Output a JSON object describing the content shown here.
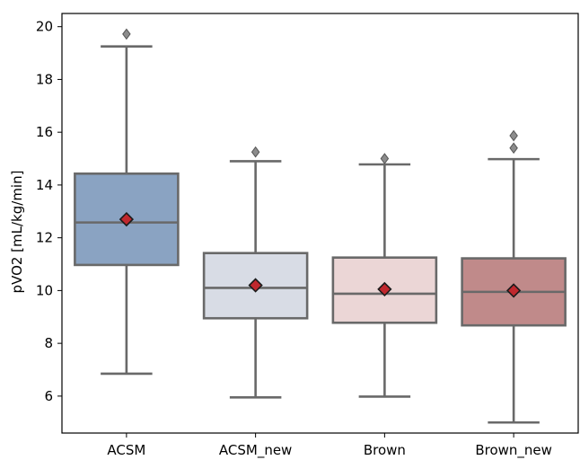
{
  "chart_data": {
    "type": "boxplot",
    "title": "",
    "xlabel": "",
    "ylabel": "pVO2 [mL/kg/min]",
    "ylim": [
      4.6,
      20.5
    ],
    "yticks": [
      6,
      8,
      10,
      12,
      14,
      16,
      18,
      20
    ],
    "grid": false,
    "categories": [
      "ACSM",
      "ACSM_new",
      "Brown",
      "Brown_new"
    ],
    "boxes": [
      {
        "category": "ACSM",
        "whisker_low": 6.85,
        "q1": 10.97,
        "median": 12.58,
        "q3": 14.43,
        "whisker_high": 19.25,
        "mean": 12.7,
        "outliers": [
          19.72
        ],
        "color": "#8aa3c2"
      },
      {
        "category": "ACSM_new",
        "whisker_low": 5.95,
        "q1": 8.95,
        "median": 10.1,
        "q3": 11.42,
        "whisker_high": 14.9,
        "mean": 10.2,
        "outliers": [
          15.25
        ],
        "color": "#d8dce5"
      },
      {
        "category": "Brown",
        "whisker_low": 5.98,
        "q1": 8.78,
        "median": 9.88,
        "q3": 11.25,
        "whisker_high": 14.78,
        "mean": 10.05,
        "outliers": [
          15.0
        ],
        "color": "#ebd6d6"
      },
      {
        "category": "Brown_new",
        "whisker_low": 5.0,
        "q1": 8.68,
        "median": 9.95,
        "q3": 11.22,
        "whisker_high": 14.98,
        "mean": 10.0,
        "outliers": [
          15.4,
          15.87
        ],
        "color": "#c08a8a"
      }
    ],
    "mean_marker_color": "#c0282e",
    "line_color": "#696969"
  }
}
